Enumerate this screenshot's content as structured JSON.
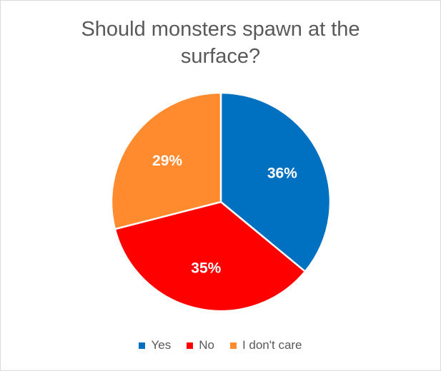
{
  "chart_data": {
    "type": "pie",
    "title_line1": "Should monsters spawn at the",
    "title_line2": "surface?",
    "categories": [
      "Yes",
      "No",
      "I don't care"
    ],
    "values": [
      36,
      35,
      29
    ],
    "labels": [
      "36%",
      "35%",
      "29%"
    ],
    "colors": [
      "#0070C0",
      "#FF0000",
      "#FF8B2E"
    ],
    "start_angle": "top, clockwise",
    "legend_position": "bottom"
  }
}
